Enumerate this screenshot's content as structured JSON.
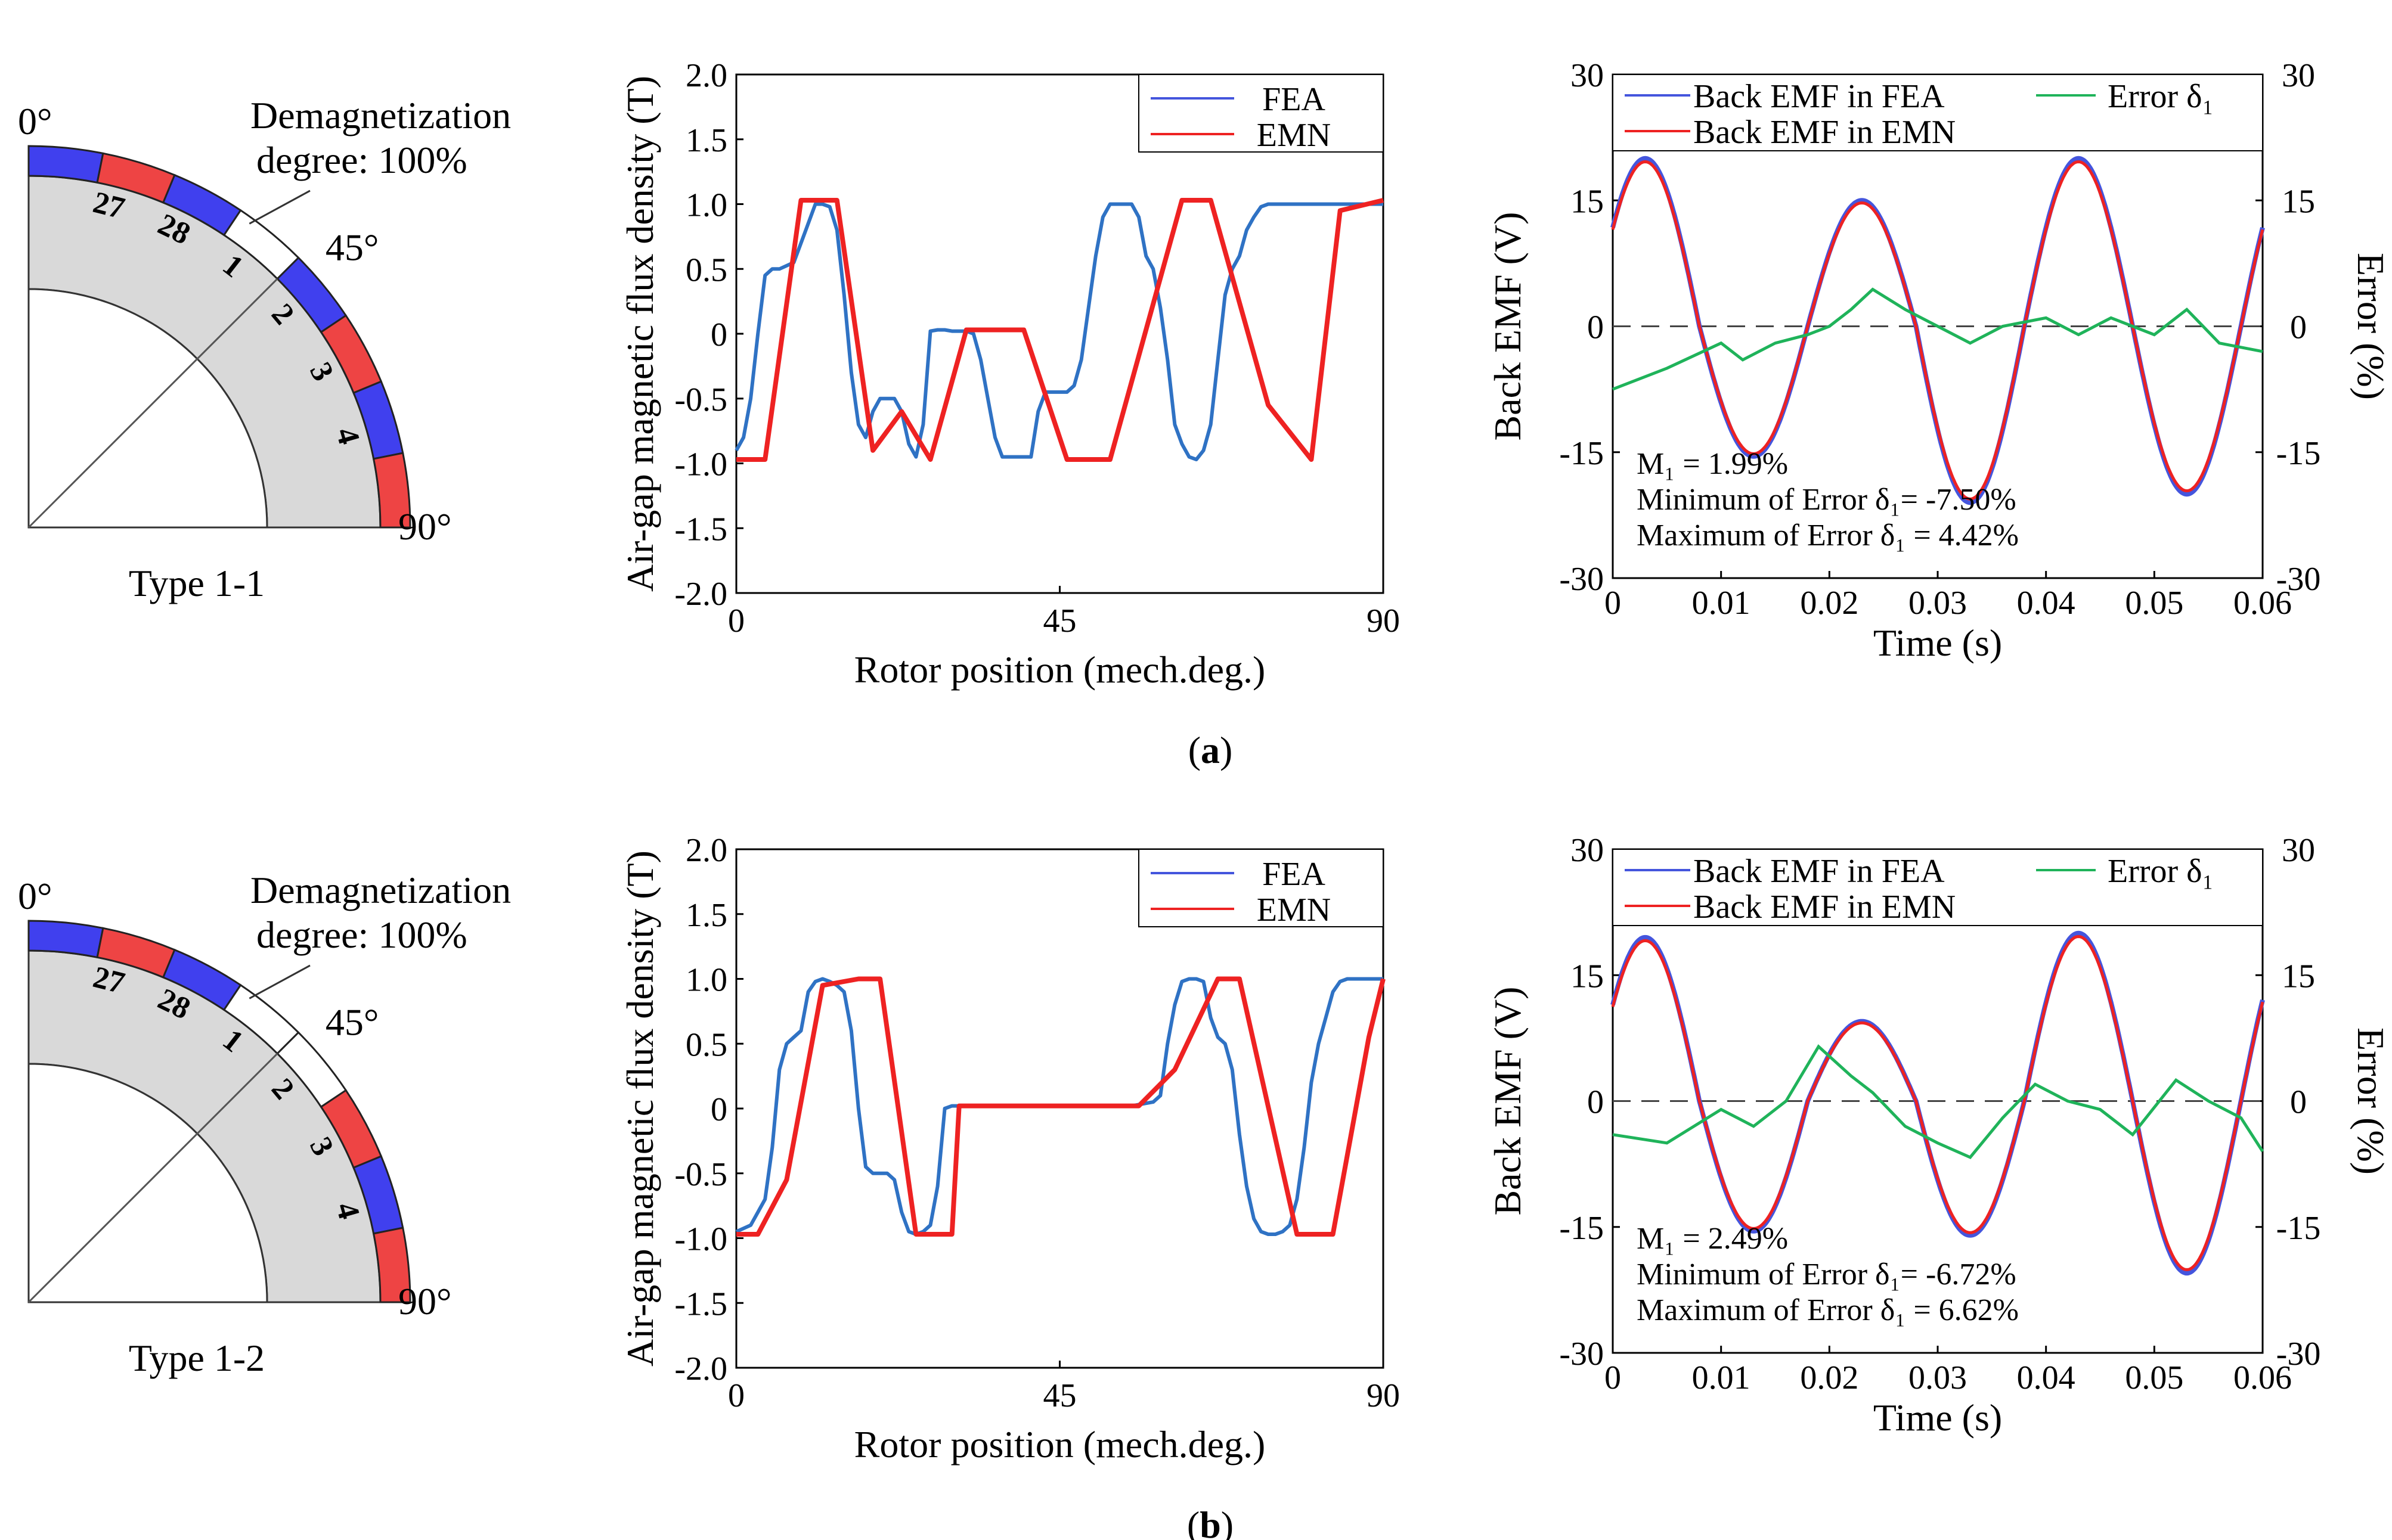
{
  "figure": {
    "colors": {
      "fea": "#4455dd",
      "emn": "#ee2222",
      "blue_curve": "#2f72c4",
      "green": "#1fb35a",
      "magnet_blue": "#4040ee",
      "magnet_red": "#ee4444",
      "core": "#d9d9d9"
    },
    "rows": [
      {
        "caption_prefix": "(",
        "caption_letter": "a",
        "caption_suffix": ")",
        "schematic": {
          "type_label": "Type 1-1",
          "demag_label_line1": "Demagnetization",
          "demag_label_line2": "degree: 100%",
          "angle_0": "0°",
          "angle_45": "45°",
          "angle_90": "90°",
          "slot_numbers": [
            "27",
            "28",
            "1",
            "2",
            "3",
            "4"
          ],
          "magnet_colors": [
            "blue",
            "red",
            "blue",
            "white",
            "blue",
            "red",
            "blue",
            "red"
          ]
        },
        "flux_chart": {
          "type": "line",
          "title": "",
          "xlabel": "Rotor position (mech.deg.)",
          "ylabel": "Air-gap magnetic flux density (T)",
          "xlim": [
            0,
            90
          ],
          "ylim": [
            -2.0,
            2.0
          ],
          "xticks": [
            "0",
            "45",
            "90"
          ],
          "yticks": [
            "2.0",
            "1.5",
            "1.0",
            "0.5",
            "0",
            "-0.5",
            "-1.0",
            "-1.5",
            "-2.0"
          ],
          "legend": [
            "FEA",
            "EMN"
          ],
          "series": [
            {
              "name": "FEA",
              "x": [
                0,
                1,
                2,
                3,
                4,
                5,
                6,
                8,
                9,
                10,
                11,
                12,
                13,
                14,
                15,
                16,
                17,
                18,
                19,
                20,
                21,
                22,
                23,
                24,
                25,
                26,
                27,
                28,
                29,
                30,
                31,
                32,
                33,
                34,
                35,
                36,
                37,
                38,
                39,
                40,
                41,
                42,
                43,
                44,
                45,
                46,
                47,
                48,
                49,
                50,
                51,
                52,
                53,
                54,
                55,
                56,
                57,
                58,
                59,
                60,
                61,
                62,
                63,
                64,
                65,
                66,
                67,
                68,
                69,
                70,
                71,
                72,
                73,
                74,
                75,
                76,
                77,
                78,
                79,
                80,
                81,
                82,
                83,
                84,
                85,
                86,
                87,
                88,
                89,
                90
              ],
              "y": [
                -0.9,
                -0.8,
                -0.5,
                0.0,
                0.45,
                0.5,
                0.5,
                0.55,
                0.7,
                0.85,
                1.0,
                1.0,
                0.98,
                0.8,
                0.3,
                -0.3,
                -0.7,
                -0.8,
                -0.6,
                -0.5,
                -0.5,
                -0.5,
                -0.6,
                -0.85,
                -0.95,
                -0.7,
                0.02,
                0.03,
                0.03,
                0.02,
                0.02,
                0.02,
                0.0,
                -0.2,
                -0.5,
                -0.8,
                -0.95,
                -0.95,
                -0.95,
                -0.95,
                -0.95,
                -0.6,
                -0.45,
                -0.45,
                -0.45,
                -0.45,
                -0.4,
                -0.2,
                0.2,
                0.6,
                0.9,
                1.0,
                1.0,
                1.0,
                1.0,
                0.9,
                0.6,
                0.5,
                0.2,
                -0.2,
                -0.7,
                -0.85,
                -0.95,
                -0.97,
                -0.9,
                -0.7,
                -0.2,
                0.3,
                0.5,
                0.6,
                0.8,
                0.9,
                0.98,
                1.0,
                1.0,
                1.0,
                1.0,
                1.0,
                1.0,
                1.0,
                1.0,
                1.0,
                1.0,
                1.0,
                1.0,
                1.0,
                1.0,
                1.0,
                1.0,
                1.0
              ]
            },
            {
              "name": "EMN",
              "x": [
                0,
                4,
                9,
                14,
                19,
                23,
                27,
                32,
                40,
                46,
                52,
                62,
                66,
                74,
                80,
                84,
                90
              ],
              "y": [
                -0.97,
                -0.97,
                1.03,
                1.03,
                -0.9,
                -0.6,
                -0.97,
                0.03,
                0.03,
                -0.97,
                -0.97,
                1.03,
                1.03,
                -0.55,
                -0.97,
                0.95,
                1.03
              ]
            }
          ]
        },
        "emf_chart": {
          "type": "line",
          "title": "",
          "xlabel": "Time (s)",
          "ylabel_left": "Back EMF (V)",
          "ylabel_right": "Error (%)",
          "xlim": [
            0,
            0.06
          ],
          "ylim": [
            -30,
            30
          ],
          "xticks": [
            "0",
            "0.01",
            "0.02",
            "0.03",
            "0.04",
            "0.05",
            "0.06"
          ],
          "yticks": [
            "30",
            "15",
            "0",
            "-15",
            "-30"
          ],
          "legend": [
            "Back EMF in FEA",
            "Back EMF in EMN",
            "Error δ₁"
          ],
          "annotations": [
            "M₁ = 1.99%",
            "Minimum of Error δ₁= -7.50%",
            "Maximum  of Error δ₁ = 4.42%"
          ],
          "emf_peaks": [
            20,
            -15.5,
            15,
            -21,
            20,
            -20
          ],
          "error_series": {
            "name": "Error δ₁",
            "x": [
              0,
              0.005,
              0.01,
              0.012,
              0.015,
              0.018,
              0.02,
              0.022,
              0.024,
              0.027,
              0.03,
              0.033,
              0.036,
              0.04,
              0.043,
              0.046,
              0.05,
              0.053,
              0.056,
              0.06
            ],
            "y": [
              -7.5,
              -5,
              -2,
              -4,
              -2,
              -1,
              0,
              2,
              4.4,
              2,
              0,
              -2,
              0,
              1,
              -1,
              1,
              -1,
              2,
              -2,
              -3
            ]
          }
        }
      },
      {
        "caption_prefix": "(",
        "caption_letter": "b",
        "caption_suffix": ")",
        "schematic": {
          "type_label": "Type 1-2",
          "demag_label_line1": "Demagnetization",
          "demag_label_line2": "degree: 100%",
          "angle_0": "0°",
          "angle_45": "45°",
          "angle_90": "90°",
          "slot_numbers": [
            "27",
            "28",
            "1",
            "2",
            "3",
            "4"
          ],
          "magnet_colors": [
            "blue",
            "red",
            "blue",
            "white",
            "white",
            "red",
            "blue",
            "red"
          ]
        },
        "flux_chart": {
          "type": "line",
          "title": "",
          "xlabel": "Rotor position (mech.deg.)",
          "ylabel": "Air-gap magnetic flux density (T)",
          "xlim": [
            0,
            90
          ],
          "ylim": [
            -2.0,
            2.0
          ],
          "xticks": [
            "0",
            "45",
            "90"
          ],
          "yticks": [
            "2.0",
            "1.5",
            "1.0",
            "0.5",
            "0",
            "-0.5",
            "-1.0",
            "-1.5",
            "-2.0"
          ],
          "legend": [
            "FEA",
            "EMN"
          ],
          "series": [
            {
              "name": "FEA",
              "x": [
                0,
                2,
                4,
                5,
                6,
                7,
                8,
                9,
                10,
                11,
                12,
                13,
                14,
                15,
                16,
                17,
                18,
                19,
                20,
                21,
                22,
                23,
                24,
                25,
                26,
                27,
                28,
                29,
                30,
                31,
                32,
                36,
                42,
                50,
                55,
                58,
                59,
                60,
                61,
                62,
                63,
                64,
                65,
                66,
                67,
                68,
                69,
                70,
                71,
                72,
                73,
                74,
                75,
                76,
                77,
                78,
                79,
                80,
                81,
                82,
                83,
                84,
                85,
                86,
                87,
                88,
                89,
                90
              ],
              "y": [
                -0.95,
                -0.9,
                -0.7,
                -0.3,
                0.3,
                0.5,
                0.55,
                0.6,
                0.9,
                0.98,
                1.0,
                0.98,
                0.95,
                0.9,
                0.6,
                0.0,
                -0.45,
                -0.5,
                -0.5,
                -0.5,
                -0.55,
                -0.8,
                -0.95,
                -0.97,
                -0.95,
                -0.9,
                -0.6,
                0.0,
                0.02,
                0.02,
                0.02,
                0.02,
                0.02,
                0.02,
                0.02,
                0.05,
                0.1,
                0.5,
                0.8,
                0.98,
                1.0,
                1.0,
                0.98,
                0.7,
                0.55,
                0.5,
                0.3,
                -0.2,
                -0.6,
                -0.85,
                -0.95,
                -0.97,
                -0.97,
                -0.95,
                -0.9,
                -0.7,
                -0.3,
                0.2,
                0.5,
                0.7,
                0.9,
                0.98,
                1.0,
                1.0,
                1.0,
                1.0,
                1.0,
                1.0
              ]
            },
            {
              "name": "EMN",
              "x": [
                0,
                3,
                7,
                12,
                17,
                20,
                25,
                30,
                31,
                56,
                61,
                67,
                70,
                78,
                83,
                88,
                90
              ],
              "y": [
                -0.97,
                -0.97,
                -0.55,
                0.95,
                1.0,
                1.0,
                -0.97,
                -0.97,
                0.02,
                0.02,
                0.3,
                1.0,
                1.0,
                -0.97,
                -0.97,
                0.55,
                1.0
              ]
            }
          ]
        },
        "emf_chart": {
          "type": "line",
          "title": "",
          "xlabel": "Time (s)",
          "ylabel_left": "Back EMF (V)",
          "ylabel_right": "Error (%)",
          "xlim": [
            0,
            0.06
          ],
          "ylim": [
            -30,
            30
          ],
          "xticks": [
            "0",
            "0.01",
            "0.02",
            "0.03",
            "0.04",
            "0.05",
            "0.06"
          ],
          "yticks": [
            "30",
            "15",
            "0",
            "-15",
            "-30"
          ],
          "legend": [
            "Back EMF in FEA",
            "Back EMF in EMN",
            "Error δ₁"
          ],
          "annotations": [
            "M₁ = 2.49%",
            "Minimum of Error δ₁= -6.72%",
            "Maximum  of Error δ₁ = 6.62%"
          ],
          "emf_peaks": [
            19.5,
            -15.5,
            9.5,
            -16,
            20,
            -20.5
          ],
          "error_series": {
            "name": "Error δ₁",
            "x": [
              0,
              0.005,
              0.01,
              0.013,
              0.016,
              0.019,
              0.022,
              0.024,
              0.027,
              0.03,
              0.033,
              0.036,
              0.039,
              0.042,
              0.045,
              0.048,
              0.052,
              0.055,
              0.058,
              0.06
            ],
            "y": [
              -4,
              -5,
              -1,
              -3,
              0,
              6.5,
              3,
              1,
              -3,
              -5,
              -6.7,
              -2,
              2,
              0,
              -1,
              -4,
              2.5,
              0,
              -2,
              -6
            ]
          }
        }
      }
    ]
  }
}
